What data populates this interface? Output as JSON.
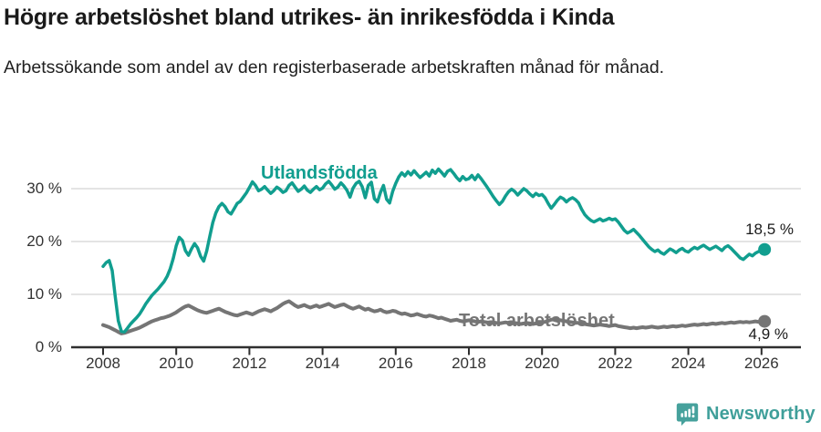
{
  "header": {
    "title": "Högre arbetslöshet bland utrikes- än inrikesfödda i Kinda",
    "subtitle": "Arbetssökande som andel av den registerbaserade arbetskraften månad för månad."
  },
  "footer": {
    "brand": "Newsworthy",
    "logo_icon": "bar-chart-speech-bubble-icon",
    "brand_color": "#3f9f9a"
  },
  "chart_data": {
    "type": "line",
    "title": "Högre arbetslöshet bland utrikes- än inrikesfödda i Kinda",
    "x_unit": "month",
    "x_start_year": 2008,
    "x_end": "2026-02",
    "x_tick_years": [
      2008,
      2010,
      2012,
      2014,
      2016,
      2018,
      2020,
      2022,
      2024,
      2026
    ],
    "y_ticks": [
      {
        "value": 0,
        "label": "0 %"
      },
      {
        "value": 10,
        "label": "10 %"
      },
      {
        "value": 20,
        "label": "20 %"
      },
      {
        "value": 30,
        "label": "30 %"
      }
    ],
    "ylim": [
      0,
      35
    ],
    "grid": "horizontal",
    "legend": "inline-labels",
    "colors": {
      "axis": "#2f2f2f",
      "gridline": "#dcdcdc"
    },
    "series": [
      {
        "name": "Utlandsfödda",
        "color": "#119e8f",
        "line_width": 3.5,
        "end_label": "18,5 %",
        "end_value": 18.5,
        "values": [
          15.3,
          16.0,
          16.4,
          14.5,
          9.5,
          5.0,
          3.0,
          2.9,
          3.6,
          4.4,
          5.0,
          5.6,
          6.3,
          7.2,
          8.2,
          9.0,
          9.8,
          10.4,
          11.0,
          11.7,
          12.4,
          13.4,
          14.8,
          16.8,
          19.2,
          20.8,
          20.2,
          18.3,
          17.4,
          18.6,
          19.6,
          18.8,
          17.2,
          16.3,
          18.2,
          21.0,
          23.6,
          25.4,
          26.6,
          27.2,
          26.6,
          25.6,
          25.2,
          26.2,
          27.2,
          27.6,
          28.4,
          29.2,
          30.2,
          31.3,
          30.6,
          29.6,
          29.9,
          30.4,
          29.7,
          29.1,
          29.6,
          30.3,
          29.9,
          29.3,
          29.6,
          30.6,
          31.1,
          30.3,
          29.5,
          29.9,
          30.5,
          29.7,
          29.3,
          29.9,
          30.4,
          29.8,
          30.1,
          30.9,
          31.4,
          30.7,
          29.9,
          30.3,
          31.1,
          30.5,
          29.7,
          28.4,
          30.1,
          31.0,
          31.4,
          30.4,
          28.3,
          30.6,
          31.2,
          28.1,
          27.5,
          29.3,
          30.6,
          28.0,
          27.3,
          29.5,
          31.0,
          32.2,
          33.0,
          32.4,
          33.2,
          32.6,
          33.4,
          32.7,
          32.1,
          32.6,
          33.1,
          32.4,
          33.5,
          32.9,
          33.7,
          33.1,
          32.4,
          33.3,
          33.6,
          32.9,
          32.1,
          31.5,
          32.3,
          31.7,
          31.9,
          32.5,
          31.7,
          32.6,
          31.9,
          31.1,
          30.3,
          29.4,
          28.5,
          27.7,
          27.0,
          27.6,
          28.6,
          29.4,
          29.9,
          29.5,
          28.8,
          29.4,
          30.0,
          29.6,
          29.0,
          28.5,
          29.1,
          28.7,
          28.9,
          28.3,
          27.2,
          26.3,
          27.0,
          27.8,
          28.4,
          28.1,
          27.5,
          28.0,
          28.3,
          27.9,
          27.3,
          26.1,
          25.1,
          24.5,
          24.0,
          23.7,
          24.0,
          24.3,
          23.9,
          24.1,
          24.4,
          24.1,
          24.3,
          23.7,
          22.9,
          22.1,
          21.6,
          21.9,
          22.3,
          21.7,
          21.1,
          20.4,
          19.7,
          19.0,
          18.5,
          18.1,
          18.4,
          17.9,
          17.6,
          18.1,
          18.6,
          18.3,
          17.9,
          18.4,
          18.7,
          18.2,
          18.0,
          18.5,
          18.9,
          18.6,
          19.0,
          19.3,
          18.9,
          18.5,
          18.8,
          19.1,
          18.7,
          18.3,
          18.9,
          19.2,
          18.7,
          18.1,
          17.5,
          16.9,
          16.6,
          17.1,
          17.6,
          17.3,
          17.8,
          18.1,
          18.3,
          18.5
        ]
      },
      {
        "name": "Total arbetslöshet",
        "color": "#757575",
        "line_width": 4,
        "end_label": "4,9 %",
        "end_value": 4.9,
        "values": [
          4.2,
          4.0,
          3.8,
          3.5,
          3.2,
          2.9,
          2.6,
          2.7,
          2.9,
          3.1,
          3.3,
          3.5,
          3.7,
          4.0,
          4.3,
          4.6,
          4.9,
          5.1,
          5.3,
          5.5,
          5.6,
          5.8,
          6.0,
          6.3,
          6.6,
          7.0,
          7.4,
          7.7,
          7.9,
          7.6,
          7.3,
          7.0,
          6.8,
          6.6,
          6.5,
          6.7,
          6.9,
          7.1,
          7.3,
          7.0,
          6.7,
          6.5,
          6.3,
          6.1,
          6.0,
          6.2,
          6.4,
          6.6,
          6.4,
          6.2,
          6.5,
          6.8,
          7.0,
          7.2,
          7.0,
          6.8,
          7.1,
          7.4,
          7.8,
          8.2,
          8.5,
          8.7,
          8.3,
          7.9,
          7.6,
          7.8,
          8.0,
          7.7,
          7.5,
          7.7,
          7.9,
          7.6,
          7.8,
          8.0,
          8.2,
          7.9,
          7.6,
          7.8,
          8.0,
          8.1,
          7.8,
          7.5,
          7.3,
          7.5,
          7.7,
          7.4,
          7.1,
          7.3,
          7.0,
          6.8,
          6.9,
          7.1,
          6.8,
          6.6,
          6.7,
          6.9,
          6.8,
          6.5,
          6.3,
          6.4,
          6.2,
          6.0,
          6.1,
          6.3,
          6.1,
          5.9,
          5.8,
          6.0,
          5.9,
          5.7,
          5.5,
          5.6,
          5.4,
          5.2,
          5.0,
          5.1,
          5.2,
          5.0,
          4.9,
          5.0,
          5.1,
          5.0,
          4.9,
          4.8,
          4.9,
          4.8,
          4.7,
          4.6,
          4.7,
          4.6,
          4.5,
          4.6,
          4.7,
          4.6,
          4.5,
          4.6,
          4.5,
          4.4,
          4.5,
          4.6,
          4.5,
          4.4,
          4.5,
          4.6,
          4.7,
          4.8,
          5.0,
          5.2,
          5.3,
          5.2,
          5.1,
          5.0,
          4.9,
          4.8,
          4.7,
          4.6,
          4.6,
          4.5,
          4.4,
          4.3,
          4.2,
          4.1,
          4.2,
          4.3,
          4.2,
          4.1,
          4.0,
          4.1,
          4.2,
          4.0,
          3.9,
          3.8,
          3.7,
          3.6,
          3.7,
          3.6,
          3.7,
          3.8,
          3.7,
          3.8,
          3.9,
          3.8,
          3.7,
          3.8,
          3.9,
          3.8,
          3.9,
          4.0,
          3.9,
          4.0,
          4.1,
          4.0,
          4.1,
          4.2,
          4.3,
          4.2,
          4.3,
          4.4,
          4.3,
          4.4,
          4.5,
          4.4,
          4.5,
          4.6,
          4.5,
          4.6,
          4.7,
          4.6,
          4.7,
          4.8,
          4.7,
          4.8,
          4.7,
          4.8,
          4.9,
          4.8,
          4.9,
          4.9
        ]
      }
    ]
  }
}
